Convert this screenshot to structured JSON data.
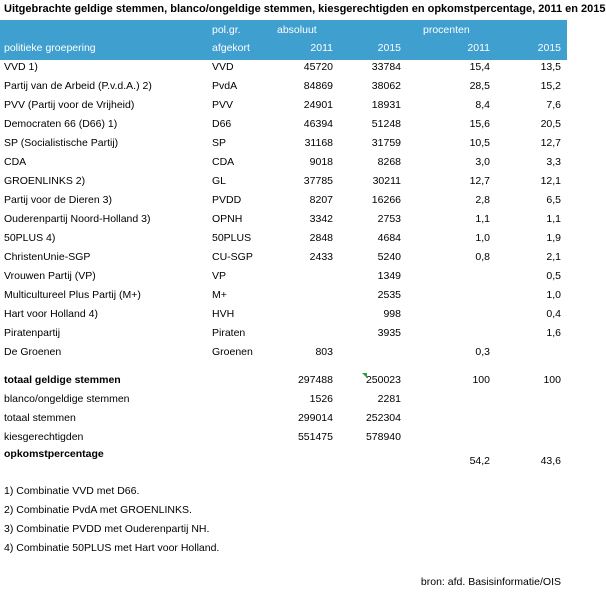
{
  "title": "Uitgebrachte geldige stemmen, blanco/ongeldige stemmen, kiesgerechtigden en opkomstpercentage, 2011 en 2015",
  "header": {
    "polgr": "pol.gr.",
    "absoluut": "absoluut",
    "procenten": "procenten",
    "group_label": "politieke groepering",
    "afgekort": "afgekort",
    "y2011_abs": "2011",
    "y2015_abs": "2015",
    "y2011_pct": "2011",
    "y2015_pct": "2015"
  },
  "rows": [
    {
      "name": "VVD 1)",
      "abbr": "VVD",
      "a11": "45720",
      "a15": "33784",
      "p11": "15,4",
      "p15": "13,5"
    },
    {
      "name": "Partij van de Arbeid (P.v.d.A.) 2)",
      "abbr": "PvdA",
      "a11": "84869",
      "a15": "38062",
      "p11": "28,5",
      "p15": "15,2"
    },
    {
      "name": "PVV (Partij voor de Vrijheid)",
      "abbr": "PVV",
      "a11": "24901",
      "a15": "18931",
      "p11": "8,4",
      "p15": "7,6"
    },
    {
      "name": "Democraten 66 (D66) 1)",
      "abbr": "D66",
      "a11": "46394",
      "a15": "51248",
      "p11": "15,6",
      "p15": "20,5"
    },
    {
      "name": "SP (Socialistische Partij)",
      "abbr": "SP",
      "a11": "31168",
      "a15": "31759",
      "p11": "10,5",
      "p15": "12,7"
    },
    {
      "name": "CDA",
      "abbr": "CDA",
      "a11": "9018",
      "a15": "8268",
      "p11": "3,0",
      "p15": "3,3"
    },
    {
      "name": "GROENLINKS 2)",
      "abbr": "GL",
      "a11": "37785",
      "a15": "30211",
      "p11": "12,7",
      "p15": "12,1"
    },
    {
      "name": "Partij voor de Dieren 3)",
      "abbr": "PVDD",
      "a11": "8207",
      "a15": "16266",
      "p11": "2,8",
      "p15": "6,5"
    },
    {
      "name": "Ouderenpartij Noord-Holland 3)",
      "abbr": "OPNH",
      "a11": "3342",
      "a15": "2753",
      "p11": "1,1",
      "p15": "1,1"
    },
    {
      "name": "50PLUS 4)",
      "abbr": "50PLUS",
      "a11": "2848",
      "a15": "4684",
      "p11": "1,0",
      "p15": "1,9"
    },
    {
      "name": "ChristenUnie-SGP",
      "abbr": "CU-SGP",
      "a11": "2433",
      "a15": "5240",
      "p11": "0,8",
      "p15": "2,1"
    },
    {
      "name": "Vrouwen Partij (VP)",
      "abbr": "VP",
      "a11": "",
      "a15": "1349",
      "p11": "",
      "p15": "0,5"
    },
    {
      "name": "Multicultureel Plus Partij (M+)",
      "abbr": "M+",
      "a11": "",
      "a15": "2535",
      "p11": "",
      "p15": "1,0"
    },
    {
      "name": "Hart voor Holland 4)",
      "abbr": "HVH",
      "a11": "",
      "a15": "998",
      "p11": "",
      "p15": "0,4"
    },
    {
      "name": "Piratenpartij",
      "abbr": "Piraten",
      "a11": "",
      "a15": "3935",
      "p11": "",
      "p15": "1,6"
    },
    {
      "name": "De Groenen",
      "abbr": "Groenen",
      "a11": "803",
      "a15": "",
      "p11": "0,3",
      "p15": ""
    }
  ],
  "totals": [
    {
      "name": "totaal geldige stemmen",
      "a11": "297488",
      "a15": "250023",
      "p11": "100",
      "p15": "100"
    },
    {
      "name": "blanco/ongeldige stemmen",
      "a11": "1526",
      "a15": "2281",
      "p11": "",
      "p15": ""
    },
    {
      "name": "totaal stemmen",
      "a11": "299014",
      "a15": "252304",
      "p11": "",
      "p15": ""
    },
    {
      "name": "kiesgerechtigden",
      "a11": "551475",
      "a15": "578940",
      "p11": "",
      "p15": ""
    },
    {
      "name": "opkomstpercentage",
      "a11": "",
      "a15": "",
      "p11": "54,2",
      "p15": "43,6"
    }
  ],
  "notes": [
    "1) Combinatie VVD met D66.",
    "2) Combinatie PvdA met GROENLINKS.",
    "3) Combinatie PVDD met Ouderenpartij NH.",
    "4) Combinatie 50PLUS met Hart voor Holland."
  ],
  "source": "bron: afd. Basisinformatie/OIS",
  "colors": {
    "header_bg": "#3f9fcf",
    "header_text": "#ffffff",
    "comment_marker": "#2e9e3e"
  }
}
